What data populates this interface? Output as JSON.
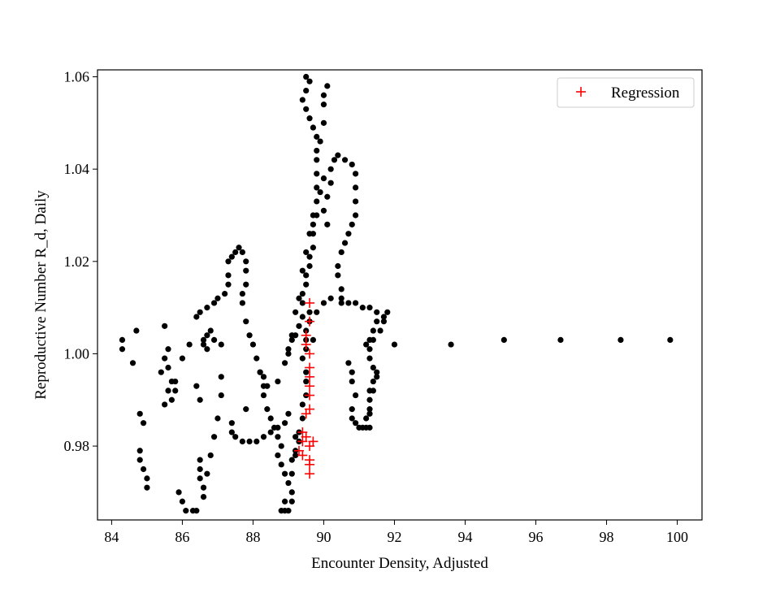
{
  "chart_data": {
    "type": "scatter",
    "title": "",
    "xlabel": "Encounter Density, Adjusted",
    "ylabel": "Reproductive Number R_d, Daily",
    "xlim": [
      83.6,
      100.7
    ],
    "ylim": [
      0.964,
      1.0615
    ],
    "xticks": [
      84,
      86,
      88,
      90,
      92,
      94,
      96,
      98,
      100
    ],
    "xtick_labels": [
      "84",
      "86",
      "88",
      "90",
      "92",
      "94",
      "96",
      "98",
      "100"
    ],
    "yticks": [
      0.98,
      1.0,
      1.02,
      1.04,
      1.06
    ],
    "ytick_labels": [
      "0.98",
      "1.00",
      "1.02",
      "1.04",
      "1.06"
    ],
    "grid": false,
    "legend": {
      "location": "top-right",
      "entries": [
        "Regression"
      ]
    },
    "colors": {
      "observed": "#000000",
      "regression": "#ff0000"
    },
    "series": [
      {
        "marker": "dot",
        "color": "#000000",
        "points": [
          [
            84.3,
            1.003
          ],
          [
            84.3,
            1.001
          ],
          [
            84.6,
            0.998
          ],
          [
            84.7,
            1.005
          ],
          [
            84.8,
            0.987
          ],
          [
            84.9,
            0.985
          ],
          [
            84.8,
            0.979
          ],
          [
            84.8,
            0.977
          ],
          [
            84.9,
            0.975
          ],
          [
            85.0,
            0.973
          ],
          [
            85.0,
            0.971
          ],
          [
            85.4,
            0.996
          ],
          [
            85.5,
            0.999
          ],
          [
            85.6,
            1.001
          ],
          [
            85.6,
            0.997
          ],
          [
            85.7,
            0.994
          ],
          [
            85.6,
            0.992
          ],
          [
            85.7,
            0.99
          ],
          [
            85.8,
            0.994
          ],
          [
            85.8,
            0.992
          ],
          [
            85.5,
            0.989
          ],
          [
            85.5,
            1.006
          ],
          [
            85.9,
            0.97
          ],
          [
            86.0,
            0.968
          ],
          [
            86.1,
            0.966
          ],
          [
            86.3,
            0.966
          ],
          [
            86.4,
            0.966
          ],
          [
            86.0,
            0.999
          ],
          [
            86.2,
            1.002
          ],
          [
            86.4,
            1.008
          ],
          [
            86.5,
            1.009
          ],
          [
            86.7,
            1.01
          ],
          [
            86.9,
            1.011
          ],
          [
            87.0,
            1.012
          ],
          [
            87.2,
            1.013
          ],
          [
            87.3,
            1.015
          ],
          [
            86.6,
            1.003
          ],
          [
            86.7,
            1.004
          ],
          [
            86.8,
            1.005
          ],
          [
            86.9,
            1.003
          ],
          [
            86.7,
            1.001
          ],
          [
            86.6,
            1.002
          ],
          [
            87.1,
            1.002
          ],
          [
            86.5,
            0.977
          ],
          [
            86.5,
            0.975
          ],
          [
            86.5,
            0.973
          ],
          [
            86.6,
            0.971
          ],
          [
            86.6,
            0.969
          ],
          [
            86.7,
            0.974
          ],
          [
            86.8,
            0.978
          ],
          [
            86.9,
            0.982
          ],
          [
            87.0,
            0.986
          ],
          [
            87.1,
            0.991
          ],
          [
            87.1,
            0.995
          ],
          [
            86.4,
            0.993
          ],
          [
            86.5,
            0.99
          ],
          [
            87.3,
            1.017
          ],
          [
            87.3,
            1.02
          ],
          [
            87.4,
            1.021
          ],
          [
            87.5,
            1.022
          ],
          [
            87.6,
            1.023
          ],
          [
            87.7,
            1.022
          ],
          [
            87.8,
            1.02
          ],
          [
            87.8,
            1.018
          ],
          [
            87.8,
            1.015
          ],
          [
            87.7,
            1.013
          ],
          [
            87.7,
            1.011
          ],
          [
            87.8,
            1.007
          ],
          [
            87.9,
            1.004
          ],
          [
            88.0,
            1.002
          ],
          [
            88.1,
            0.999
          ],
          [
            88.2,
            0.996
          ],
          [
            88.3,
            0.993
          ],
          [
            88.3,
            0.991
          ],
          [
            88.4,
            0.988
          ],
          [
            88.5,
            0.986
          ],
          [
            88.6,
            0.984
          ],
          [
            88.7,
            0.982
          ],
          [
            88.8,
            0.98
          ],
          [
            87.4,
            0.985
          ],
          [
            87.4,
            0.983
          ],
          [
            87.5,
            0.982
          ],
          [
            87.7,
            0.981
          ],
          [
            87.9,
            0.981
          ],
          [
            88.1,
            0.981
          ],
          [
            88.3,
            0.982
          ],
          [
            88.5,
            0.983
          ],
          [
            88.7,
            0.984
          ],
          [
            88.9,
            0.985
          ],
          [
            89.0,
            0.987
          ],
          [
            87.8,
            0.988
          ],
          [
            88.2,
            0.996
          ],
          [
            88.3,
            0.995
          ],
          [
            88.4,
            0.993
          ],
          [
            88.7,
            0.994
          ],
          [
            88.7,
            0.978
          ],
          [
            88.8,
            0.976
          ],
          [
            88.9,
            0.974
          ],
          [
            89.0,
            0.972
          ],
          [
            89.1,
            0.97
          ],
          [
            89.1,
            0.968
          ],
          [
            89.0,
            0.966
          ],
          [
            88.9,
            0.966
          ],
          [
            88.8,
            0.966
          ],
          [
            88.9,
            0.968
          ],
          [
            89.1,
            0.974
          ],
          [
            89.1,
            0.977
          ],
          [
            89.2,
            0.979
          ],
          [
            89.2,
            0.982
          ],
          [
            88.9,
            0.998
          ],
          [
            89.0,
            1.001
          ],
          [
            89.1,
            1.003
          ],
          [
            89.2,
            1.004
          ],
          [
            89.3,
            1.006
          ],
          [
            89.4,
            1.008
          ],
          [
            89.4,
            1.011
          ],
          [
            89.4,
            1.013
          ],
          [
            89.5,
            1.015
          ],
          [
            89.5,
            1.017
          ],
          [
            89.6,
            1.019
          ],
          [
            89.6,
            1.021
          ],
          [
            89.7,
            1.023
          ],
          [
            89.7,
            1.026
          ],
          [
            89.7,
            1.028
          ],
          [
            89.8,
            1.03
          ],
          [
            89.8,
            1.033
          ],
          [
            89.8,
            1.036
          ],
          [
            89.8,
            1.039
          ],
          [
            89.8,
            1.042
          ],
          [
            89.0,
            1.0
          ],
          [
            89.1,
            1.004
          ],
          [
            89.2,
            1.009
          ],
          [
            89.3,
            1.012
          ],
          [
            89.4,
            1.018
          ],
          [
            89.5,
            1.022
          ],
          [
            89.6,
            1.026
          ],
          [
            89.7,
            1.03
          ],
          [
            89.9,
            1.035
          ],
          [
            90.0,
            1.038
          ],
          [
            89.9,
            1.046
          ],
          [
            90.0,
            1.05
          ],
          [
            90.0,
            1.054
          ],
          [
            90.0,
            1.056
          ],
          [
            90.1,
            1.058
          ],
          [
            89.4,
            0.999
          ],
          [
            89.5,
            1.001
          ],
          [
            89.5,
            1.003
          ],
          [
            89.5,
            1.005
          ],
          [
            89.6,
            1.007
          ],
          [
            89.6,
            1.009
          ],
          [
            89.7,
            1.003
          ],
          [
            89.5,
            0.996
          ],
          [
            89.5,
            0.994
          ],
          [
            89.5,
            1.06
          ],
          [
            89.6,
            1.059
          ],
          [
            89.5,
            1.057
          ],
          [
            89.4,
            1.055
          ],
          [
            89.5,
            1.053
          ],
          [
            89.6,
            1.051
          ],
          [
            89.7,
            1.049
          ],
          [
            89.8,
            1.047
          ],
          [
            89.8,
            1.044
          ],
          [
            89.5,
            0.991
          ],
          [
            89.4,
            0.989
          ],
          [
            89.4,
            0.986
          ],
          [
            89.3,
            0.983
          ],
          [
            89.3,
            0.981
          ],
          [
            89.2,
            0.978
          ],
          [
            90.1,
            1.028
          ],
          [
            90.0,
            1.031
          ],
          [
            90.1,
            1.034
          ],
          [
            90.2,
            1.037
          ],
          [
            90.2,
            1.04
          ],
          [
            90.3,
            1.042
          ],
          [
            90.4,
            1.043
          ],
          [
            90.6,
            1.042
          ],
          [
            90.8,
            1.041
          ],
          [
            90.9,
            1.039
          ],
          [
            90.9,
            1.036
          ],
          [
            90.9,
            1.033
          ],
          [
            90.9,
            1.03
          ],
          [
            90.8,
            1.028
          ],
          [
            90.7,
            1.026
          ],
          [
            90.6,
            1.024
          ],
          [
            90.5,
            1.022
          ],
          [
            90.4,
            1.019
          ],
          [
            90.4,
            1.017
          ],
          [
            90.5,
            1.014
          ],
          [
            90.5,
            1.012
          ],
          [
            90.2,
            1.012
          ],
          [
            90.0,
            1.011
          ],
          [
            89.8,
            1.009
          ],
          [
            90.5,
            1.011
          ],
          [
            90.7,
            1.011
          ],
          [
            90.9,
            1.011
          ],
          [
            91.1,
            1.01
          ],
          [
            91.3,
            1.01
          ],
          [
            91.5,
            1.009
          ],
          [
            91.7,
            1.008
          ],
          [
            91.8,
            1.009
          ],
          [
            91.7,
            1.007
          ],
          [
            91.6,
            1.005
          ],
          [
            91.4,
            1.003
          ],
          [
            91.3,
            1.001
          ],
          [
            91.3,
            0.999
          ],
          [
            91.4,
            0.997
          ],
          [
            91.5,
            0.995
          ],
          [
            90.7,
            0.998
          ],
          [
            90.8,
            0.996
          ],
          [
            90.8,
            0.994
          ],
          [
            90.9,
            0.991
          ],
          [
            90.8,
            0.988
          ],
          [
            90.8,
            0.986
          ],
          [
            90.9,
            0.985
          ],
          [
            91.0,
            0.984
          ],
          [
            91.1,
            0.984
          ],
          [
            91.2,
            0.984
          ],
          [
            91.3,
            0.984
          ],
          [
            91.3,
            0.987
          ],
          [
            91.3,
            0.99
          ],
          [
            91.4,
            0.992
          ],
          [
            91.4,
            0.994
          ],
          [
            91.5,
            0.996
          ],
          [
            91.3,
            0.992
          ],
          [
            91.3,
            0.988
          ],
          [
            91.2,
            0.986
          ],
          [
            91.2,
            1.002
          ],
          [
            91.3,
            1.003
          ],
          [
            91.4,
            1.005
          ],
          [
            91.5,
            1.007
          ],
          [
            92.0,
            1.002
          ],
          [
            93.6,
            1.002
          ],
          [
            95.1,
            1.003
          ],
          [
            96.7,
            1.003
          ],
          [
            98.4,
            1.003
          ],
          [
            99.8,
            1.003
          ]
        ]
      },
      {
        "name": "Regression",
        "marker": "plus",
        "color": "#ff0000",
        "points": [
          [
            89.6,
            1.011
          ],
          [
            89.6,
            1.007
          ],
          [
            89.5,
            1.004
          ],
          [
            89.5,
            1.002
          ],
          [
            89.6,
            1.0
          ],
          [
            89.6,
            0.997
          ],
          [
            89.6,
            0.995
          ],
          [
            89.6,
            0.993
          ],
          [
            89.6,
            0.991
          ],
          [
            89.6,
            0.988
          ],
          [
            89.5,
            0.987
          ],
          [
            89.4,
            0.983
          ],
          [
            89.4,
            0.981
          ],
          [
            89.5,
            0.982
          ],
          [
            89.7,
            0.981
          ],
          [
            89.6,
            0.98
          ],
          [
            89.3,
            0.979
          ],
          [
            89.4,
            0.978
          ],
          [
            89.6,
            0.977
          ],
          [
            89.6,
            0.976
          ],
          [
            89.6,
            0.974
          ]
        ]
      }
    ]
  }
}
